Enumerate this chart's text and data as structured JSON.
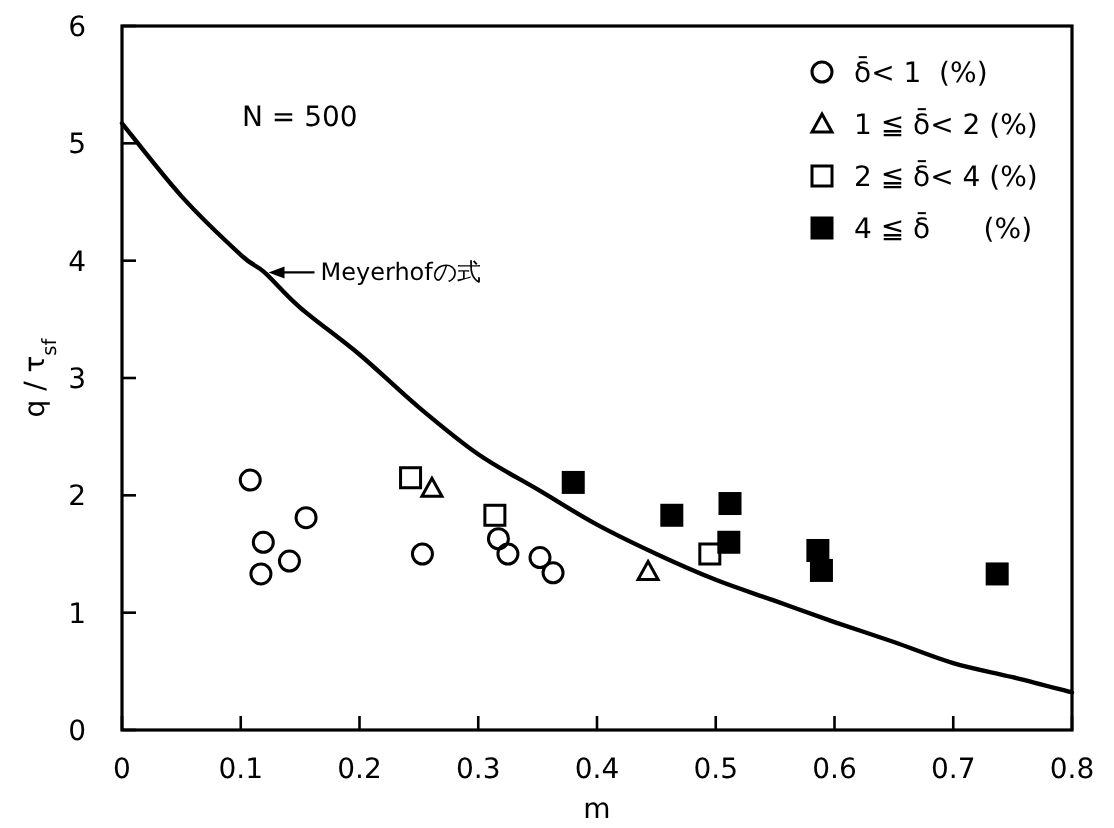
{
  "chart_data": {
    "type": "scatter",
    "xlabel": "m",
    "ylabel": "q / τ$_{sf}$",
    "xlim": [
      0,
      0.8
    ],
    "ylim": [
      0,
      6
    ],
    "xticks": [
      0,
      0.1,
      0.2,
      0.3,
      0.4,
      0.5,
      0.6,
      0.7,
      0.8
    ],
    "yticks": [
      0,
      1,
      2,
      3,
      4,
      5,
      6
    ],
    "grid": false,
    "legend": "top right",
    "annotations": [
      "N = 500",
      {
        "text": "Meyerhofの式",
        "x": 0.12,
        "y": 3.9
      }
    ],
    "series": [
      {
        "name": "δ̄< 1  (%)",
        "color": "#000000",
        "marker": "circle",
        "x": [
          0.108,
          0.119,
          0.117,
          0.141,
          0.155,
          0.253,
          0.317,
          0.325,
          0.352,
          0.363
        ],
        "values": [
          2.13,
          1.6,
          1.33,
          1.44,
          1.81,
          1.5,
          1.63,
          1.5,
          1.47,
          1.34
        ]
      },
      {
        "name": "1 ≦ δ̄< 2 (%)",
        "color": "#000000",
        "marker": "triangle",
        "x": [
          0.261,
          0.443
        ],
        "values": [
          2.06,
          1.35
        ]
      },
      {
        "name": "2 ≦ δ̄< 4 (%)",
        "color": "#000000",
        "marker": "square",
        "x": [
          0.243,
          0.314,
          0.495
        ],
        "values": [
          2.15,
          1.83,
          1.5
        ]
      },
      {
        "name": "4 ≦ δ̄      (%)",
        "color": "#000000",
        "marker": "square",
        "x": [
          0.38,
          0.463,
          0.512,
          0.511,
          0.586,
          0.589,
          0.737
        ],
        "values": [
          2.11,
          1.83,
          1.93,
          1.6,
          1.53,
          1.36,
          1.33
        ]
      },
      {
        "type": "line",
        "color": "#000000",
        "marker": "none",
        "line_style": "solid",
        "x": [
          0,
          0.05,
          0.1,
          0.12,
          0.15,
          0.2,
          0.25,
          0.3,
          0.35,
          0.4,
          0.45,
          0.5,
          0.55,
          0.6,
          0.65,
          0.7,
          0.75,
          0.8
        ],
        "values": [
          5.17,
          4.55,
          4.05,
          3.9,
          3.6,
          3.2,
          2.75,
          2.35,
          2.05,
          1.75,
          1.5,
          1.28,
          1.1,
          0.92,
          0.75,
          0.57,
          0.45,
          0.32
        ]
      }
    ]
  }
}
